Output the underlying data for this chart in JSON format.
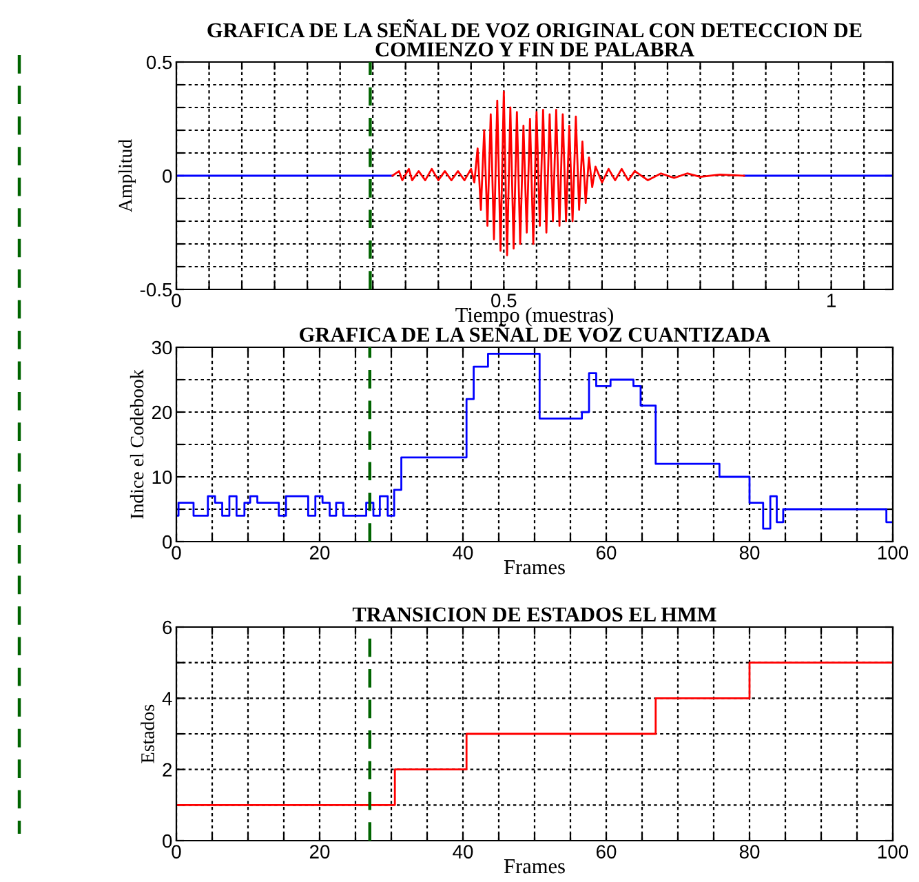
{
  "chart_data": [
    {
      "type": "line",
      "title": "GRAFICA DE LA SEÑAL DE VOZ ORIGINAL CON DETECCION DE\nCOMIENZO Y FIN DE PALABRA",
      "xlabel": "Tiempo (muestras)",
      "ylabel": "Amplitud",
      "xlim": [
        0,
        1.094
      ],
      "ylim": [
        -0.5,
        0.5
      ],
      "xticks": [
        0,
        {
          "value": 0.05,
          "label": null
        },
        {
          "value": 0.1,
          "label": null
        },
        {
          "value": 0.15,
          "label": null
        },
        {
          "value": 0.2,
          "label": null
        },
        {
          "value": 0.25,
          "label": null
        },
        {
          "value": 0.3,
          "label": null
        },
        {
          "value": 0.35,
          "label": null
        },
        {
          "value": 0.4,
          "label": null
        },
        {
          "value": 0.45,
          "label": null
        },
        0.5,
        {
          "value": 0.55,
          "label": null
        },
        {
          "value": 0.6,
          "label": null
        },
        {
          "value": 0.65,
          "label": null
        },
        {
          "value": 0.7,
          "label": null
        },
        {
          "value": 0.75,
          "label": null
        },
        {
          "value": 0.8,
          "label": null
        },
        {
          "value": 0.85,
          "label": null
        },
        {
          "value": 0.9,
          "label": null
        },
        {
          "value": 0.95,
          "label": null
        },
        1,
        {
          "value": 1.05,
          "label": null
        }
      ],
      "yticks": [
        -0.5,
        {
          "value": -0.4,
          "label": null
        },
        {
          "value": -0.3,
          "label": null
        },
        {
          "value": -0.2,
          "label": null
        },
        {
          "value": -0.1,
          "label": null
        },
        0,
        {
          "value": 0.1,
          "label": null
        },
        {
          "value": 0.2,
          "label": null
        },
        {
          "value": 0.3,
          "label": null
        },
        {
          "value": 0.4,
          "label": null
        },
        0.5
      ],
      "grid": true,
      "ref_lines": [
        {
          "axis": "x",
          "value": 0.296,
          "color": "#006400",
          "line_style": "dashed"
        }
      ],
      "series": [
        {
          "color": "#0000ff",
          "x": [
            0,
            0.33,
            0.331,
            0.866,
            0.867,
            1.094
          ],
          "values": [
            0,
            0,
            null,
            null,
            0,
            0
          ]
        },
        {
          "color": "#ff0000",
          "x": [
            0.33,
            0.34,
            0.345,
            0.355,
            0.36,
            0.37,
            0.38,
            0.39,
            0.4,
            0.41,
            0.42,
            0.43,
            0.44,
            0.45,
            0.455,
            0.46,
            0.465,
            0.47,
            0.475,
            0.48,
            0.485,
            0.49,
            0.495,
            0.5,
            0.505,
            0.51,
            0.515,
            0.52,
            0.525,
            0.53,
            0.535,
            0.54,
            0.545,
            0.55,
            0.555,
            0.56,
            0.565,
            0.57,
            0.575,
            0.58,
            0.585,
            0.59,
            0.595,
            0.6,
            0.605,
            0.61,
            0.615,
            0.62,
            0.625,
            0.63,
            0.635,
            0.64,
            0.65,
            0.66,
            0.67,
            0.68,
            0.69,
            0.7,
            0.72,
            0.74,
            0.76,
            0.78,
            0.8,
            0.83,
            0.867
          ],
          "values": [
            0,
            0.02,
            -0.02,
            0.03,
            -0.02,
            0.02,
            -0.02,
            0.03,
            -0.02,
            0.02,
            -0.02,
            0.02,
            -0.02,
            0.03,
            -0.03,
            0.12,
            -0.15,
            0.2,
            -0.22,
            0.27,
            -0.28,
            0.33,
            -0.33,
            0.37,
            -0.35,
            0.3,
            -0.32,
            0.28,
            -0.3,
            0.22,
            -0.25,
            0.25,
            -0.3,
            0.28,
            -0.22,
            0.29,
            -0.25,
            0.27,
            -0.2,
            0.29,
            -0.22,
            0.27,
            -0.2,
            0.22,
            -0.2,
            0.26,
            -0.15,
            0.15,
            -0.12,
            0.08,
            -0.05,
            0.04,
            -0.03,
            0.03,
            -0.02,
            0.03,
            -0.02,
            0.02,
            -0.02,
            0.01,
            -0.01,
            0.01,
            -0.005,
            0.005,
            0
          ]
        }
      ]
    },
    {
      "type": "step",
      "title": "GRAFICA DE LA SEÑAL DE VOZ CUANTIZADA",
      "xlabel": "Frames",
      "ylabel": "Indice el Codebook",
      "xlim": [
        0,
        100
      ],
      "ylim": [
        0,
        30
      ],
      "xticks": [
        0,
        {
          "value": 5,
          "label": null
        },
        {
          "value": 10,
          "label": null
        },
        {
          "value": 15,
          "label": null
        },
        20,
        {
          "value": 25,
          "label": null
        },
        {
          "value": 30,
          "label": null
        },
        {
          "value": 35,
          "label": null
        },
        40,
        {
          "value": 45,
          "label": null
        },
        {
          "value": 50,
          "label": null
        },
        {
          "value": 55,
          "label": null
        },
        60,
        {
          "value": 65,
          "label": null
        },
        {
          "value": 70,
          "label": null
        },
        {
          "value": 75,
          "label": null
        },
        80,
        {
          "value": 85,
          "label": null
        },
        {
          "value": 90,
          "label": null
        },
        {
          "value": 95,
          "label": null
        },
        100
      ],
      "yticks": [
        0,
        {
          "value": 5,
          "label": null
        },
        10,
        {
          "value": 15,
          "label": null
        },
        20,
        {
          "value": 25,
          "label": null
        },
        30
      ],
      "grid": true,
      "ref_lines": [
        {
          "axis": "x",
          "value": 27,
          "color": "#006400",
          "line_style": "dashed"
        }
      ],
      "series": [
        {
          "color": "#0000ff",
          "x": [
            0,
            0.3,
            2.4,
            4.4,
            5.4,
            6.4,
            7.4,
            8.4,
            9.5,
            10.3,
            11.3,
            14.3,
            15.3,
            18.4,
            19.4,
            20.4,
            21.4,
            22.3,
            23.3,
            26.5,
            27.5,
            28.4,
            29.5,
            30.4,
            31.4,
            40.5,
            41.5,
            43.5,
            50.7,
            56.6,
            57.6,
            58.6,
            60.6,
            63.8,
            64.8,
            66.9,
            75.8,
            80,
            81.9,
            82.9,
            83.8,
            84.7,
            99.1,
            100
          ],
          "values": [
            4,
            6,
            4,
            7,
            6,
            4,
            7,
            4,
            6,
            7,
            6,
            4,
            7,
            4,
            7,
            6,
            4,
            6,
            4,
            6,
            4,
            7,
            4,
            8,
            13,
            22,
            27,
            29,
            19,
            20,
            26,
            24,
            25,
            24,
            21,
            12,
            10,
            6,
            2,
            7,
            3,
            5,
            3,
            3
          ]
        }
      ]
    },
    {
      "type": "step",
      "title": "TRANSICION DE ESTADOS EL HMM",
      "xlabel": "Frames",
      "ylabel": "Estados",
      "xlim": [
        0,
        100
      ],
      "ylim": [
        0,
        6
      ],
      "xticks": [
        0,
        {
          "value": 5,
          "label": null
        },
        {
          "value": 10,
          "label": null
        },
        {
          "value": 15,
          "label": null
        },
        20,
        {
          "value": 25,
          "label": null
        },
        {
          "value": 30,
          "label": null
        },
        {
          "value": 35,
          "label": null
        },
        40,
        {
          "value": 45,
          "label": null
        },
        {
          "value": 50,
          "label": null
        },
        {
          "value": 55,
          "label": null
        },
        60,
        {
          "value": 65,
          "label": null
        },
        {
          "value": 70,
          "label": null
        },
        {
          "value": 75,
          "label": null
        },
        80,
        {
          "value": 85,
          "label": null
        },
        {
          "value": 90,
          "label": null
        },
        {
          "value": 95,
          "label": null
        },
        100
      ],
      "yticks": [
        0,
        {
          "value": 1,
          "label": null
        },
        2,
        {
          "value": 3,
          "label": null
        },
        4,
        {
          "value": 5,
          "label": null
        },
        6
      ],
      "grid": true,
      "ref_lines": [
        {
          "axis": "x",
          "value": 27,
          "color": "#006400",
          "line_style": "dashed"
        }
      ],
      "series": [
        {
          "color": "#ff0000",
          "x": [
            0,
            30.5,
            40.5,
            66.9,
            80,
            100
          ],
          "values": [
            1,
            2,
            3,
            4,
            5,
            5
          ]
        }
      ]
    }
  ]
}
